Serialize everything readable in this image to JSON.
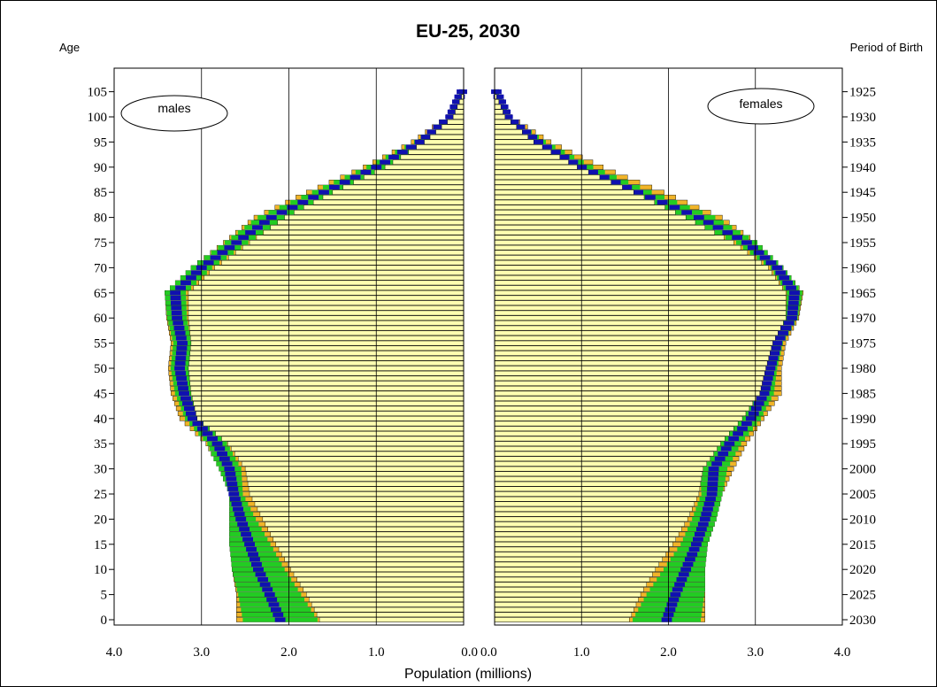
{
  "chart_data": {
    "type": "bar",
    "title": "EU-25, 2030",
    "xlabel": "Population (millions)",
    "left_axis_label": "Age",
    "right_axis_label": "Period of Birth",
    "panels": [
      {
        "name": "males",
        "xlim": [
          4.0,
          0.0
        ]
      },
      {
        "name": "females",
        "xlim": [
          0.0,
          4.0
        ]
      }
    ],
    "x_ticks": [
      "4.0",
      "3.0",
      "2.0",
      "1.0",
      "0.0"
    ],
    "x_ticks_right": [
      "0.0",
      "1.0",
      "2.0",
      "3.0",
      "4.0"
    ],
    "age_ticks": [
      0,
      5,
      10,
      15,
      20,
      25,
      30,
      35,
      40,
      45,
      50,
      55,
      60,
      65,
      70,
      75,
      80,
      85,
      90,
      95,
      100,
      105
    ],
    "birth_period_ticks": [
      2030,
      2025,
      2020,
      2015,
      2010,
      2005,
      2000,
      1995,
      1990,
      1985,
      1980,
      1975,
      1970,
      1965,
      1960,
      1955,
      1950,
      1945,
      1940,
      1935,
      1930,
      1925
    ],
    "ylim": [
      0,
      106
    ],
    "band_colors": {
      "outer": "#f0b428",
      "mid": "#22cc22",
      "median": "#1010b0",
      "base": "#ffffb0",
      "grid": "#000000"
    },
    "males_anchor_ages": [
      0,
      5,
      10,
      15,
      20,
      25,
      30,
      35,
      40,
      45,
      50,
      55,
      60,
      65,
      70,
      75,
      80,
      85,
      90,
      95,
      100,
      105
    ],
    "males_base": [
      1.65,
      1.8,
      1.98,
      2.15,
      2.3,
      2.45,
      2.5,
      2.7,
      3.05,
      3.12,
      3.15,
      3.12,
      3.15,
      3.15,
      2.85,
      2.45,
      2.05,
      1.5,
      0.9,
      0.45,
      0.12,
      0.0
    ],
    "males_median": [
      2.1,
      2.22,
      2.35,
      2.45,
      2.55,
      2.63,
      2.68,
      2.82,
      3.1,
      3.2,
      3.25,
      3.22,
      3.28,
      3.3,
      3.0,
      2.6,
      2.2,
      1.6,
      1.0,
      0.5,
      0.15,
      0.02
    ],
    "males_outer": [
      2.6,
      2.6,
      2.65,
      2.68,
      2.68,
      2.68,
      2.8,
      2.95,
      3.25,
      3.35,
      3.38,
      3.35,
      3.4,
      3.42,
      3.12,
      2.75,
      2.4,
      1.8,
      1.15,
      0.6,
      0.2,
      0.05
    ],
    "females_anchor_ages": [
      0,
      5,
      10,
      15,
      20,
      25,
      30,
      35,
      40,
      45,
      50,
      55,
      60,
      65,
      70,
      75,
      80,
      85,
      90,
      95,
      100,
      105
    ],
    "females_base": [
      1.55,
      1.68,
      1.85,
      2.05,
      2.22,
      2.35,
      2.4,
      2.6,
      2.85,
      3.05,
      3.12,
      3.2,
      3.35,
      3.35,
      3.15,
      2.75,
      2.2,
      1.6,
      0.95,
      0.45,
      0.12,
      0.0
    ],
    "females_median": [
      1.98,
      2.08,
      2.2,
      2.32,
      2.42,
      2.5,
      2.52,
      2.7,
      2.95,
      3.1,
      3.17,
      3.25,
      3.42,
      3.45,
      3.25,
      2.9,
      2.35,
      1.65,
      1.0,
      0.5,
      0.15,
      0.02
    ],
    "females_outer": [
      2.42,
      2.42,
      2.42,
      2.45,
      2.55,
      2.62,
      2.75,
      2.9,
      3.1,
      3.3,
      3.3,
      3.35,
      3.5,
      3.55,
      3.32,
      3.02,
      2.62,
      1.95,
      1.25,
      0.65,
      0.2,
      0.05
    ]
  }
}
